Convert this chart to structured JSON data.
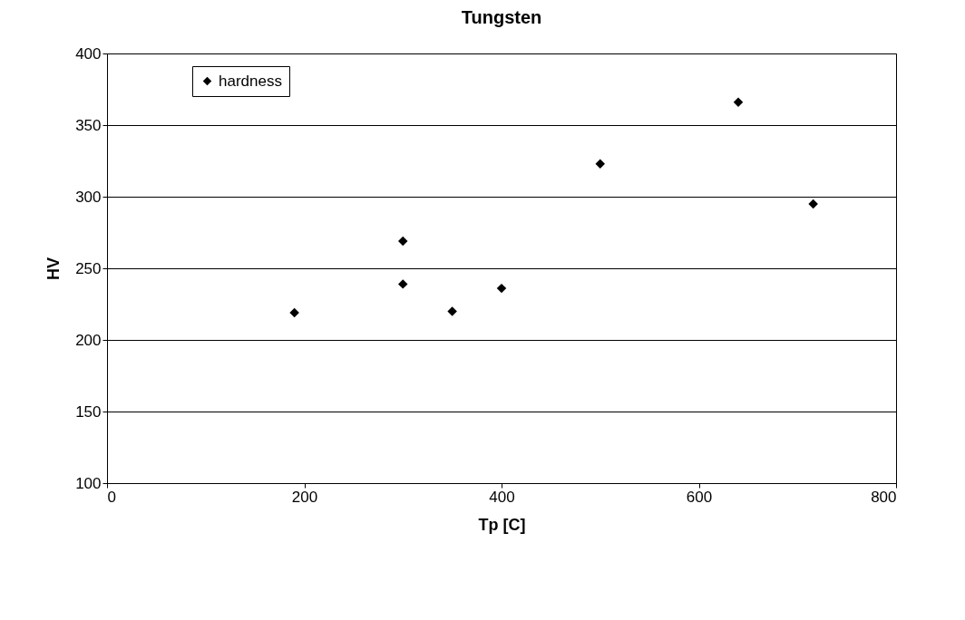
{
  "chart_data": {
    "type": "scatter",
    "title": "Tungsten",
    "xlabel": "Tp [C]",
    "ylabel": "HV",
    "x": [
      190,
      300,
      300,
      350,
      400,
      500,
      640,
      716
    ],
    "series": [
      {
        "name": "hardness",
        "color": "#000000",
        "values": [
          219,
          269,
          239,
          220,
          236,
          323,
          366,
          295
        ]
      }
    ],
    "xlim": [
      0,
      800
    ],
    "xticks": [
      0,
      200,
      400,
      600,
      800
    ],
    "ylim": [
      100,
      400
    ],
    "yticks": [
      100,
      150,
      200,
      250,
      300,
      350,
      400
    ],
    "grid": "y",
    "legend": "top left",
    "marker": "diamond"
  }
}
